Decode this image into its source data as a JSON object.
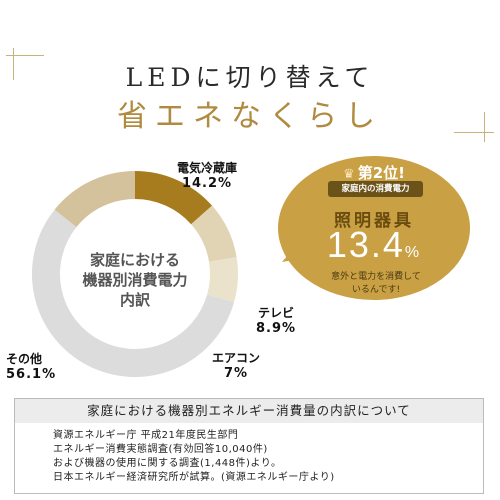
{
  "headline": {
    "line1": "LEDに切り替えて",
    "line2": "省エネなくらし"
  },
  "donut": {
    "center_label": [
      "家庭における",
      "機器別消費電力",
      "内訳"
    ],
    "colors": {
      "lighting": "#a67c1f",
      "fridge": "#d4c29c",
      "tv": "#e1d4b4",
      "aircon": "#ebe2cc",
      "other": "#dcdcdc"
    }
  },
  "chart_data": {
    "type": "pie",
    "categories": [
      "照明器具",
      "テレビ",
      "エアコン",
      "その他",
      "電気冷蔵庫"
    ],
    "values": [
      13.4,
      8.9,
      7,
      56.1,
      14.2
    ],
    "labels": [
      {
        "name": "電気冷蔵庫",
        "value": "14.2%"
      },
      {
        "name": "テレビ",
        "value": "8.9%"
      },
      {
        "name": "エアコン",
        "value": "7%"
      },
      {
        "name": "その他",
        "value": "56.1%"
      }
    ]
  },
  "bubble": {
    "rank": "第2位!",
    "subtitle": "家庭内の消費電力",
    "item": "照明器具",
    "value": "13.4",
    "unit": "%",
    "note_line1": "意外と電力を消費して",
    "note_line2": "いるんです!",
    "color": "#c9a044"
  },
  "note": {
    "title": "家庭における機器別エネルギー消費量の内訳について",
    "lines": [
      "資源エネルギー庁 平成21年度民生部門",
      "エネルギー消費実態調査(有効回答10,040件)",
      "および機器の使用に関する調査(1,448件)より。",
      "日本エネルギー経済研究所が試算。(資源エネルギー庁より)"
    ]
  }
}
